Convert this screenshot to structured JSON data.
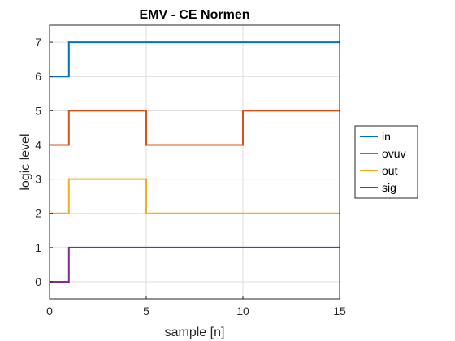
{
  "chart_data": {
    "type": "line",
    "step": true,
    "title": "EMV - CE Normen",
    "xlabel": "sample [n]",
    "ylabel": "logic level",
    "xlim": [
      0,
      15
    ],
    "ylim": [
      -0.5,
      7.5
    ],
    "xticks": [
      0,
      5,
      10,
      15
    ],
    "yticks": [
      0,
      1,
      2,
      3,
      4,
      5,
      6,
      7
    ],
    "grid": true,
    "legend_position": "right",
    "series": [
      {
        "name": "in",
        "color": "#0072BD",
        "x": [
          0,
          1,
          15
        ],
        "y": [
          6,
          7,
          7
        ]
      },
      {
        "name": "ovuv",
        "color": "#D95319",
        "x": [
          0,
          1,
          5,
          10,
          15
        ],
        "y": [
          4,
          5,
          4,
          5,
          5
        ]
      },
      {
        "name": "out",
        "color": "#EDB120",
        "x": [
          0,
          1,
          5,
          15
        ],
        "y": [
          2,
          3,
          2,
          2
        ]
      },
      {
        "name": "sig",
        "color": "#7E2F8E",
        "x": [
          0,
          1,
          15
        ],
        "y": [
          0,
          1,
          1
        ]
      }
    ]
  }
}
